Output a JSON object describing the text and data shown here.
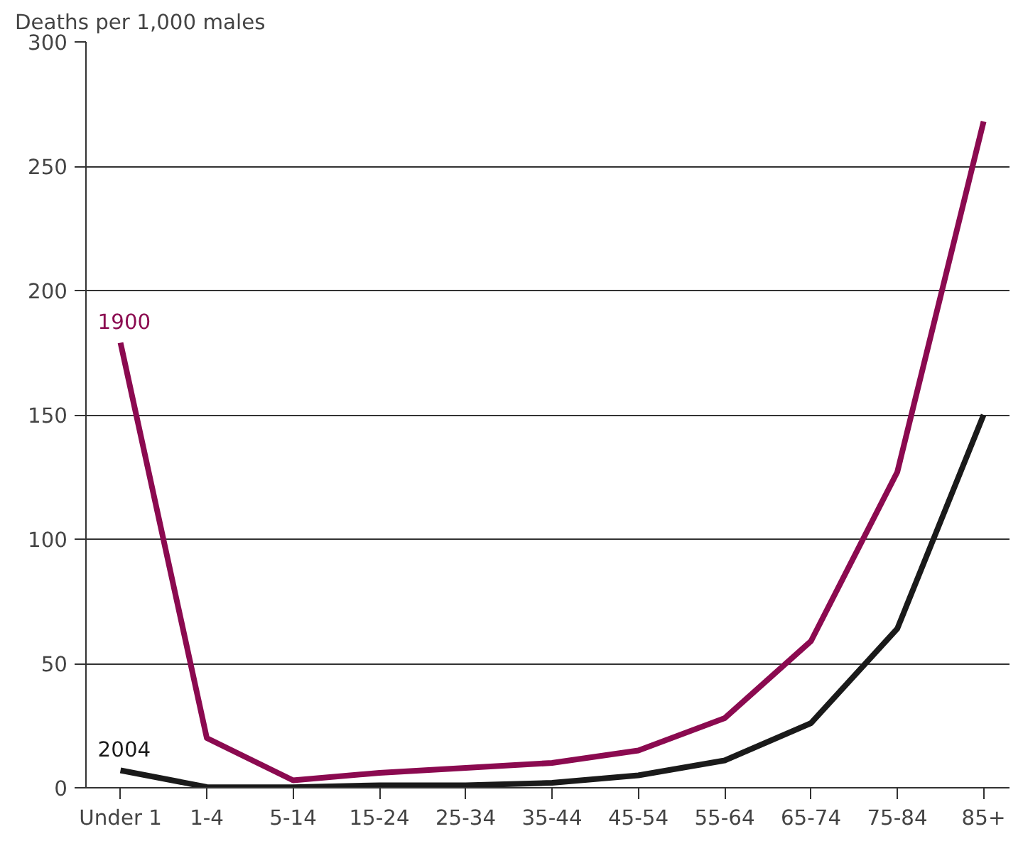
{
  "chart_data": {
    "type": "line",
    "ylabel": "Deaths per 1,000 males",
    "categories": [
      "Under 1",
      "1-4",
      "5-14",
      "15-24",
      "25-34",
      "35-44",
      "45-54",
      "55-64",
      "65-74",
      "75-84",
      "85+"
    ],
    "series": [
      {
        "name": "1900",
        "color": "#8b0a50",
        "values": [
          179,
          20,
          3,
          6,
          8,
          10,
          15,
          28,
          59,
          127,
          268
        ]
      },
      {
        "name": "2004",
        "color": "#1a1a1a",
        "values": [
          7,
          0.3,
          0.2,
          1,
          1,
          2,
          5,
          11,
          26,
          64,
          150
        ]
      }
    ],
    "ylim": [
      0,
      300
    ],
    "yticks": [
      0,
      50,
      100,
      150,
      200,
      250,
      300
    ],
    "grid": "y",
    "legend": false,
    "marker": "none",
    "line_style": "solid"
  }
}
